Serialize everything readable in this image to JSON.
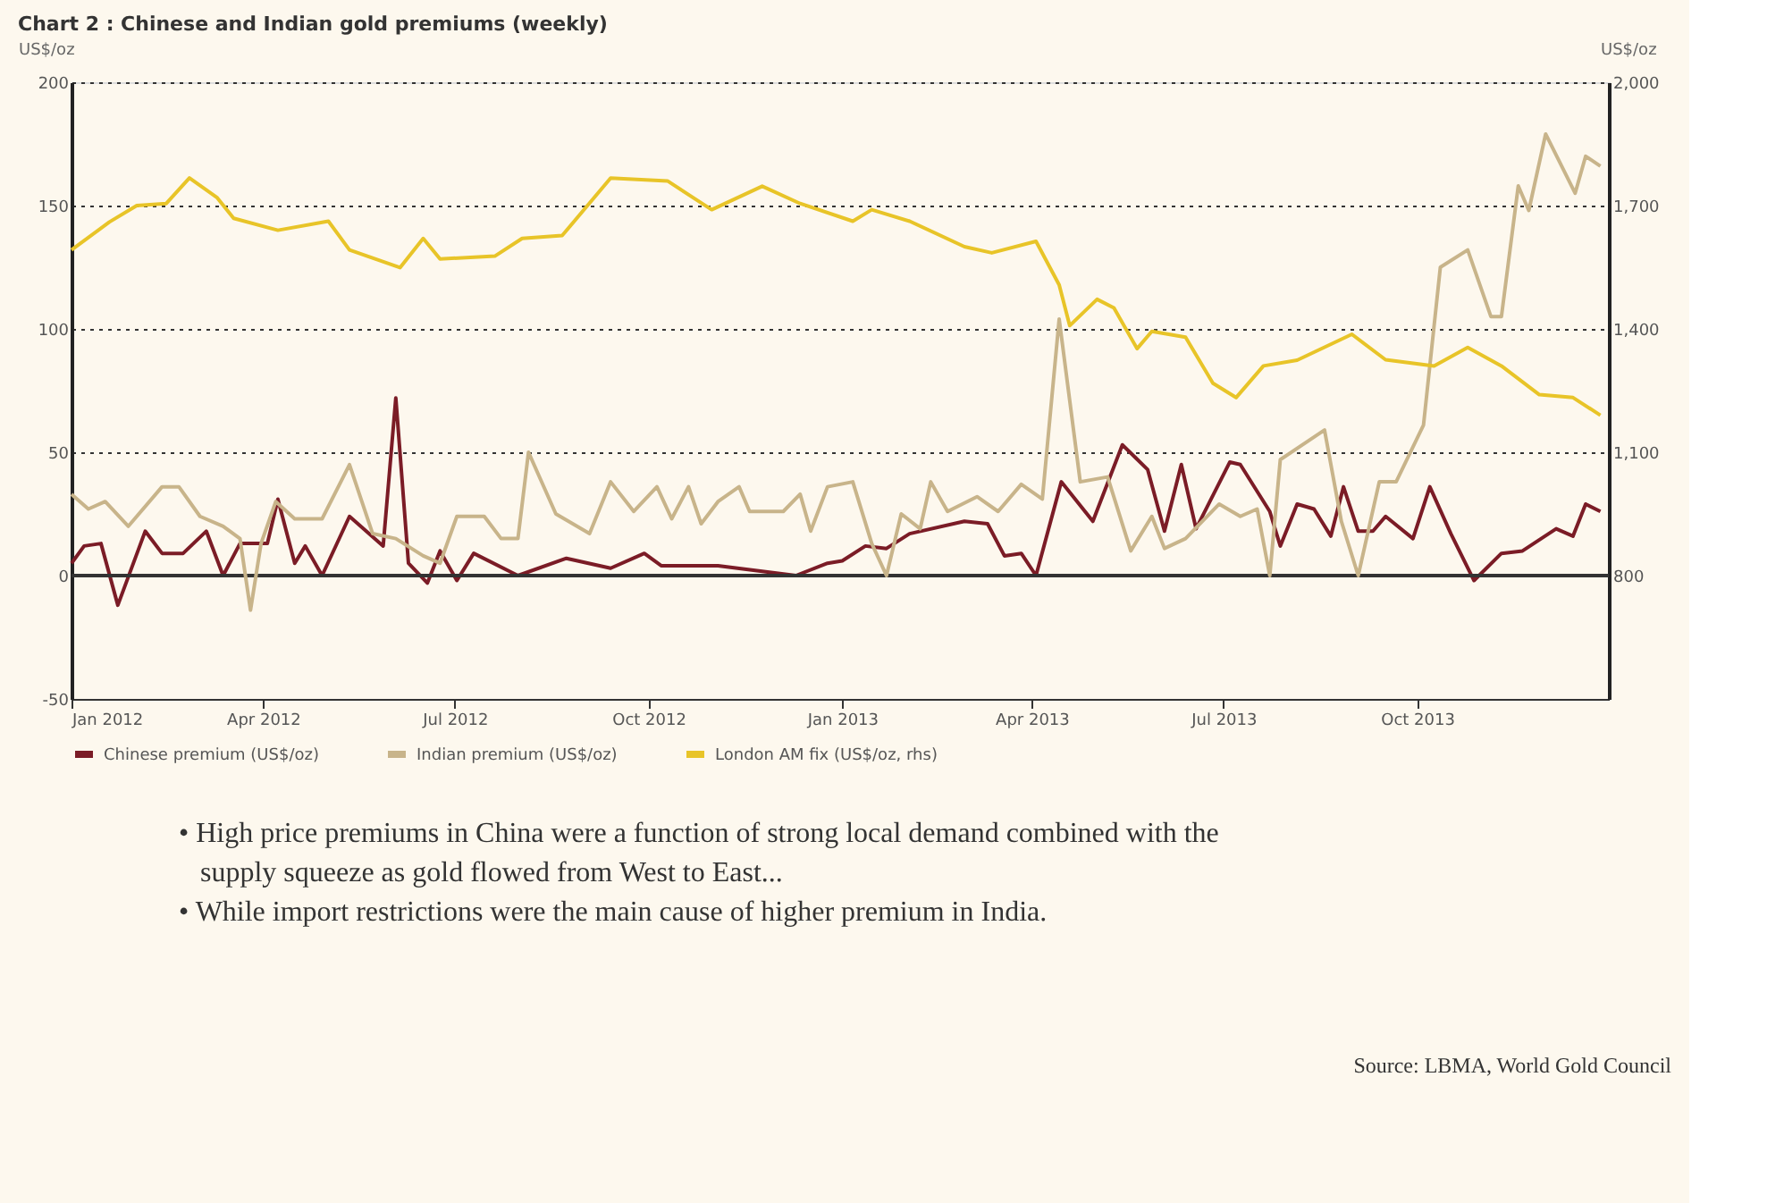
{
  "chart_data": {
    "type": "line",
    "title": "Chart 2 : Chinese and Indian gold premiums (weekly)",
    "ylabel": "US$/oz",
    "y2label": "US$/oz",
    "xlim": [
      "2012-01-01",
      "2013-12-31"
    ],
    "xticks": [
      {
        "value": "2012-01-01",
        "label": "Jan 2012"
      },
      {
        "value": "2012-04-01",
        "label": "Apr 2012"
      },
      {
        "value": "2012-07-01",
        "label": "Jul 2012"
      },
      {
        "value": "2012-10-01",
        "label": "Oct 2012"
      },
      {
        "value": "2013-01-01",
        "label": "Jan 2013"
      },
      {
        "value": "2013-04-01",
        "label": "Apr 2013"
      },
      {
        "value": "2013-07-01",
        "label": "Jul 2013"
      },
      {
        "value": "2013-10-01",
        "label": "Oct 2013"
      }
    ],
    "ylim": [
      -50,
      200
    ],
    "yticks": [
      -50,
      0,
      50,
      100,
      150,
      200
    ],
    "y2lim": [
      500,
      2000
    ],
    "y2ticks": [
      {
        "value": 500,
        "label": null
      },
      800,
      {
        "value": 1100,
        "label": "1,100"
      },
      {
        "value": 1400,
        "label": "1,400"
      },
      {
        "value": 1700,
        "label": "1,700"
      },
      {
        "value": 2000,
        "label": "2,000"
      }
    ],
    "grid": "y",
    "legend": "bottom",
    "ref_lines": [
      {
        "axis": "y",
        "value": 0,
        "color": "#333333"
      }
    ],
    "series": [
      {
        "name": "Chinese premium (US$/oz)",
        "color": "#7b1c26",
        "x": [
          "2012-01-01",
          "2012-01-07",
          "2012-01-15",
          "2012-01-23",
          "2012-02-05",
          "2012-02-13",
          "2012-02-23",
          "2012-03-05",
          "2012-03-13",
          "2012-03-21",
          "2012-04-03",
          "2012-04-08",
          "2012-04-16",
          "2012-04-21",
          "2012-04-29",
          "2012-05-12",
          "2012-05-28",
          "2012-06-03",
          "2012-06-09",
          "2012-06-18",
          "2012-06-24",
          "2012-07-02",
          "2012-07-10",
          "2012-07-31",
          "2012-08-23",
          "2012-09-13",
          "2012-09-29",
          "2012-10-07",
          "2012-11-03",
          "2012-12-10",
          "2012-12-25",
          "2013-01-01",
          "2013-01-12",
          "2013-01-22",
          "2013-02-02",
          "2013-02-28",
          "2013-03-11",
          "2013-03-19",
          "2013-03-27",
          "2013-04-03",
          "2013-04-15",
          "2013-04-30",
          "2013-05-14",
          "2013-05-26",
          "2013-06-03",
          "2013-06-11",
          "2013-06-18",
          "2013-07-04",
          "2013-07-09",
          "2013-07-23",
          "2013-07-28",
          "2013-08-05",
          "2013-08-13",
          "2013-08-21",
          "2013-08-27",
          "2013-09-03",
          "2013-09-10",
          "2013-09-16",
          "2013-09-29",
          "2013-10-07",
          "2013-10-17",
          "2013-10-28",
          "2013-11-10",
          "2013-11-20",
          "2013-12-06",
          "2013-12-14",
          "2013-12-20",
          "2013-12-27"
        ],
        "values": [
          5,
          12,
          13,
          -12,
          18,
          9,
          9,
          18,
          0,
          13,
          13,
          31,
          5,
          12,
          0,
          24,
          12,
          72,
          5,
          -3,
          10,
          -2,
          9,
          0,
          7,
          3,
          9,
          4,
          4,
          0,
          5,
          6,
          12,
          11,
          17,
          22,
          21,
          8,
          9,
          0,
          38,
          22,
          53,
          43,
          18,
          45,
          19,
          46,
          45,
          26,
          12,
          29,
          27,
          16,
          36,
          18,
          18,
          24,
          15,
          36,
          17,
          -2,
          9,
          10,
          19,
          16,
          29,
          26
        ]
      },
      {
        "name": "Indian premium (US$/oz)",
        "color": "#c8b48a",
        "x": [
          "2012-01-01",
          "2012-01-09",
          "2012-01-17",
          "2012-01-28",
          "2012-02-13",
          "2012-02-21",
          "2012-03-02",
          "2012-03-13",
          "2012-03-21",
          "2012-03-26",
          "2012-03-31",
          "2012-04-07",
          "2012-04-16",
          "2012-04-29",
          "2012-05-12",
          "2012-05-23",
          "2012-06-03",
          "2012-06-16",
          "2012-06-24",
          "2012-07-02",
          "2012-07-15",
          "2012-07-23",
          "2012-07-31",
          "2012-08-05",
          "2012-08-18",
          "2012-09-03",
          "2012-09-13",
          "2012-09-24",
          "2012-10-05",
          "2012-10-12",
          "2012-10-20",
          "2012-10-26",
          "2012-11-03",
          "2012-11-13",
          "2012-11-18",
          "2012-12-04",
          "2012-12-12",
          "2012-12-17",
          "2012-12-25",
          "2013-01-06",
          "2013-01-15",
          "2013-01-22",
          "2013-01-29",
          "2013-02-07",
          "2013-02-12",
          "2013-02-20",
          "2013-03-06",
          "2013-03-16",
          "2013-03-27",
          "2013-04-06",
          "2013-04-14",
          "2013-04-24",
          "2013-05-07",
          "2013-05-18",
          "2013-05-28",
          "2013-06-03",
          "2013-06-13",
          "2013-06-29",
          "2013-07-09",
          "2013-07-17",
          "2013-07-23",
          "2013-07-28",
          "2013-08-18",
          "2013-08-26",
          "2013-09-03",
          "2013-09-13",
          "2013-09-21",
          "2013-10-04",
          "2013-10-12",
          "2013-10-25",
          "2013-11-05",
          "2013-11-10",
          "2013-11-18",
          "2013-11-23",
          "2013-12-01",
          "2013-12-15",
          "2013-12-20",
          "2013-12-27"
        ],
        "values": [
          33,
          27,
          30,
          20,
          36,
          36,
          24,
          20,
          15,
          -14,
          13,
          30,
          23,
          23,
          45,
          17,
          15,
          8,
          5,
          24,
          24,
          15,
          15,
          50,
          25,
          17,
          38,
          26,
          36,
          23,
          36,
          21,
          30,
          36,
          26,
          26,
          33,
          18,
          36,
          38,
          13,
          0,
          25,
          19,
          38,
          26,
          32,
          26,
          37,
          31,
          104,
          38,
          40,
          10,
          24,
          11,
          15,
          29,
          24,
          27,
          0,
          47,
          59,
          22,
          0,
          38,
          38,
          61,
          125,
          132,
          105,
          105,
          158,
          148,
          179,
          155,
          170,
          166
        ]
      },
      {
        "name": "London AM fix (US$/oz, rhs)",
        "color": "#e8c428",
        "axis": "y2",
        "x": [
          "2012-01-01",
          "2012-01-19",
          "2012-02-01",
          "2012-02-15",
          "2012-02-26",
          "2012-03-10",
          "2012-03-18",
          "2012-04-08",
          "2012-05-02",
          "2012-05-12",
          "2012-06-05",
          "2012-06-16",
          "2012-06-24",
          "2012-07-20",
          "2012-08-02",
          "2012-08-21",
          "2012-09-13",
          "2012-10-10",
          "2012-10-31",
          "2012-11-24",
          "2012-12-12",
          "2013-01-06",
          "2013-01-15",
          "2013-02-02",
          "2013-02-28",
          "2013-03-13",
          "2013-04-03",
          "2013-04-14",
          "2013-04-19",
          "2013-05-02",
          "2013-05-10",
          "2013-05-21",
          "2013-05-28",
          "2013-06-13",
          "2013-06-26",
          "2013-07-07",
          "2013-07-20",
          "2013-08-05",
          "2013-08-31",
          "2013-09-16",
          "2013-10-09",
          "2013-10-25",
          "2013-11-10",
          "2013-11-28",
          "2013-12-14",
          "2013-12-27"
        ],
        "values": [
          1592,
          1660,
          1700,
          1705,
          1767,
          1720,
          1669,
          1640,
          1662,
          1592,
          1549,
          1620,
          1570,
          1577,
          1620,
          1627,
          1767,
          1760,
          1690,
          1747,
          1705,
          1662,
          1690,
          1662,
          1600,
          1585,
          1613,
          1507,
          1408,
          1472,
          1451,
          1352,
          1394,
          1380,
          1268,
          1233,
          1310,
          1324,
          1387,
          1325,
          1310,
          1355,
          1310,
          1240,
          1233,
          1190
        ]
      }
    ],
    "annotations": [
      "• High price premiums in China were a function of strong local demand combined with the supply  squeeze as gold flowed from West to East...",
      "• While import restrictions were the main cause of higher premium in India.",
      "Source: LBMA, World Gold Council"
    ]
  }
}
